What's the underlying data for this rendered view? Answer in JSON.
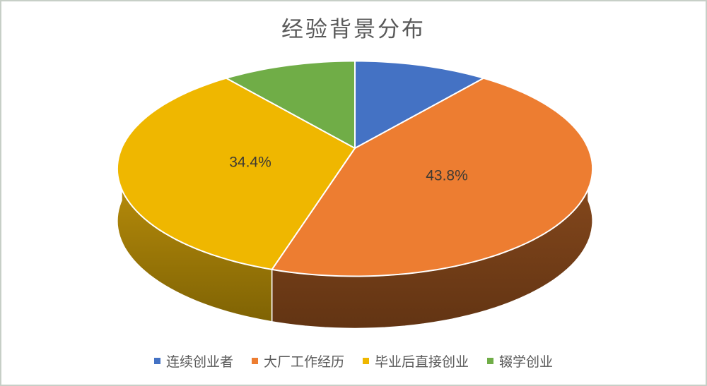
{
  "frame": {
    "background": "#FFFFFF",
    "border_color": "#C7CFC7"
  },
  "chart_data": {
    "type": "pie",
    "style": "3d",
    "title": "经验背景分布",
    "title_color": "#595959",
    "legend_position": "bottom",
    "start_angle_deg": 0,
    "categories": [
      "连续创业者",
      "大厂工作经历",
      "毕业后直接创业",
      "辍学创业"
    ],
    "values": [
      10.9,
      43.8,
      34.4,
      10.9
    ],
    "data_labels": [
      "",
      "43.8%",
      "34.4%",
      ""
    ],
    "colors": [
      "#4472C4",
      "#ED7D31",
      "#EFB700",
      "#70AD47"
    ],
    "side_gradients": [
      null,
      [
        "#8C4C1E",
        "#623413"
      ],
      [
        "#C4950C",
        "#7F6304"
      ],
      null
    ],
    "label_color": "#3E3A33",
    "label_font_size": 21,
    "label_anchors": [
      null,
      [
        630,
        248
      ],
      [
        352,
        229
      ],
      null
    ],
    "legend_text_color": "#595959"
  },
  "legend": {
    "items": [
      {
        "label": "连续创业者",
        "color": "#4472C4"
      },
      {
        "label": "大厂工作经历",
        "color": "#ED7D31"
      },
      {
        "label": "毕业后直接创业",
        "color": "#EFB700"
      },
      {
        "label": "辍学创业",
        "color": "#70AD47"
      }
    ]
  }
}
